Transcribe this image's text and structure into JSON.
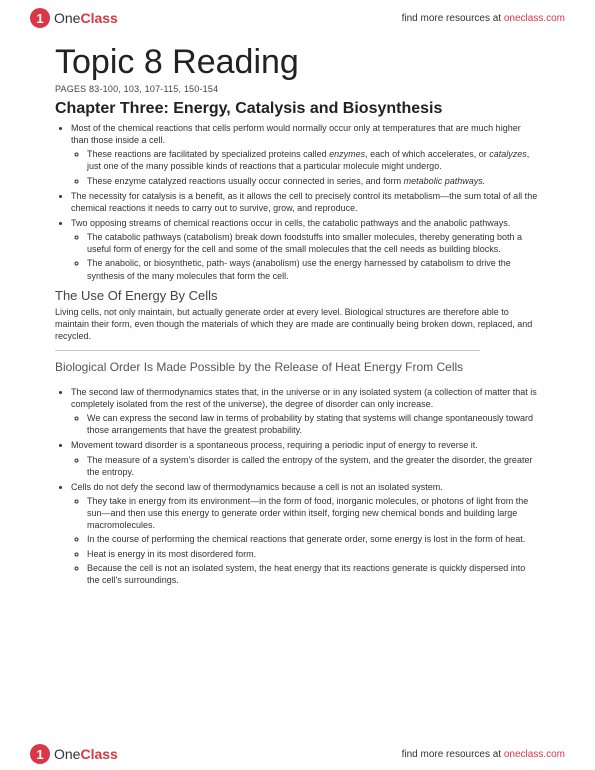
{
  "header": {
    "logo_one": "One",
    "logo_class": "Class",
    "link_prefix": "find more resources at ",
    "link": "oneclass.com"
  },
  "title": "Topic 8 Reading",
  "pages_line": "PAGES 83-100, 103, 107-115, 150-154",
  "chapter_heading": "Chapter Three: Energy, Catalysis and Biosynthesis",
  "b1": "Most of the chemical reactions that cells perform would normally occur only at temperatures that are much higher than those inside a cell.",
  "b1a": "These reactions are facilitated by specialized proteins called ",
  "b1a_em": "enzymes",
  "b1a_tail": ", each of which accelerates, or ",
  "b1a_em2": "catalyzes",
  "b1a_tail2": ", just one of the many possible kinds of reactions that a particular molecule might undergo.",
  "b1b": "These enzyme catalyzed reactions usually occur connected in series, and form ",
  "b1b_em": "metabolic pathways.",
  "b2": "The necessity for catalysis is a benefit, as it allows the cell to precisely control its metabolism—the sum total of all the chemical reactions it needs to carry out to survive, grow, and reproduce.",
  "b3": "Two opposing streams of chemical reactions occur in cells, the catabolic pathways and the anabolic pathways.",
  "b3a": "The catabolic pathways (catabolism) break down foodstuffs into smaller molecules, thereby generating both a useful form of energy for the cell and some of the small molecules that the cell needs as building blocks.",
  "b3b": "The anabolic, or biosynthetic, path- ways (anabolism) use the energy harnessed by catabolism to drive the synthesis of the many molecules that form the cell.",
  "h3_use": "The Use Of Energy By Cells",
  "para_use": "Living cells, not only maintain, but actually generate order at every level. Biological structures are therefore able to maintain their form, even though the materials of which they are made are continually being broken down, replaced, and recycled.",
  "h4_bio": "Biological Order Is Made Possible by the Release of Heat Energy From Cells",
  "c1": "The second law of thermodynamics states that, in the universe or in any isolated system (a collection of matter that is completely isolated from the rest of the universe), the degree of disorder can only increase.",
  "c1a": "We can express the second law in terms of probability by stating that systems will change spontaneously toward those arrangements that have the greatest probability.",
  "c2": "Movement toward disorder is a spontaneous process, requiring a periodic input of energy to reverse it.",
  "c2a": "The measure of a system's disorder is called the entropy of the system, and the greater the disorder, the greater the entropy.",
  "c3": "Cells do not defy the second law of thermodynamics because a cell is not an isolated system.",
  "c3a": "They take in energy from its environment—in the form of food, inorganic molecules, or photons of light from the sun—and then use this energy to generate order within itself, forging new chemical bonds and building large macromolecules.",
  "c3b": "In the course of performing the chemical reactions that generate order, some energy is lost in the form of heat.",
  "c3c": "Heat is energy in its most disordered form.",
  "c3d": "Because the cell is not an isolated system, the heat energy that its reactions generate is quickly dispersed into the cell's surroundings."
}
